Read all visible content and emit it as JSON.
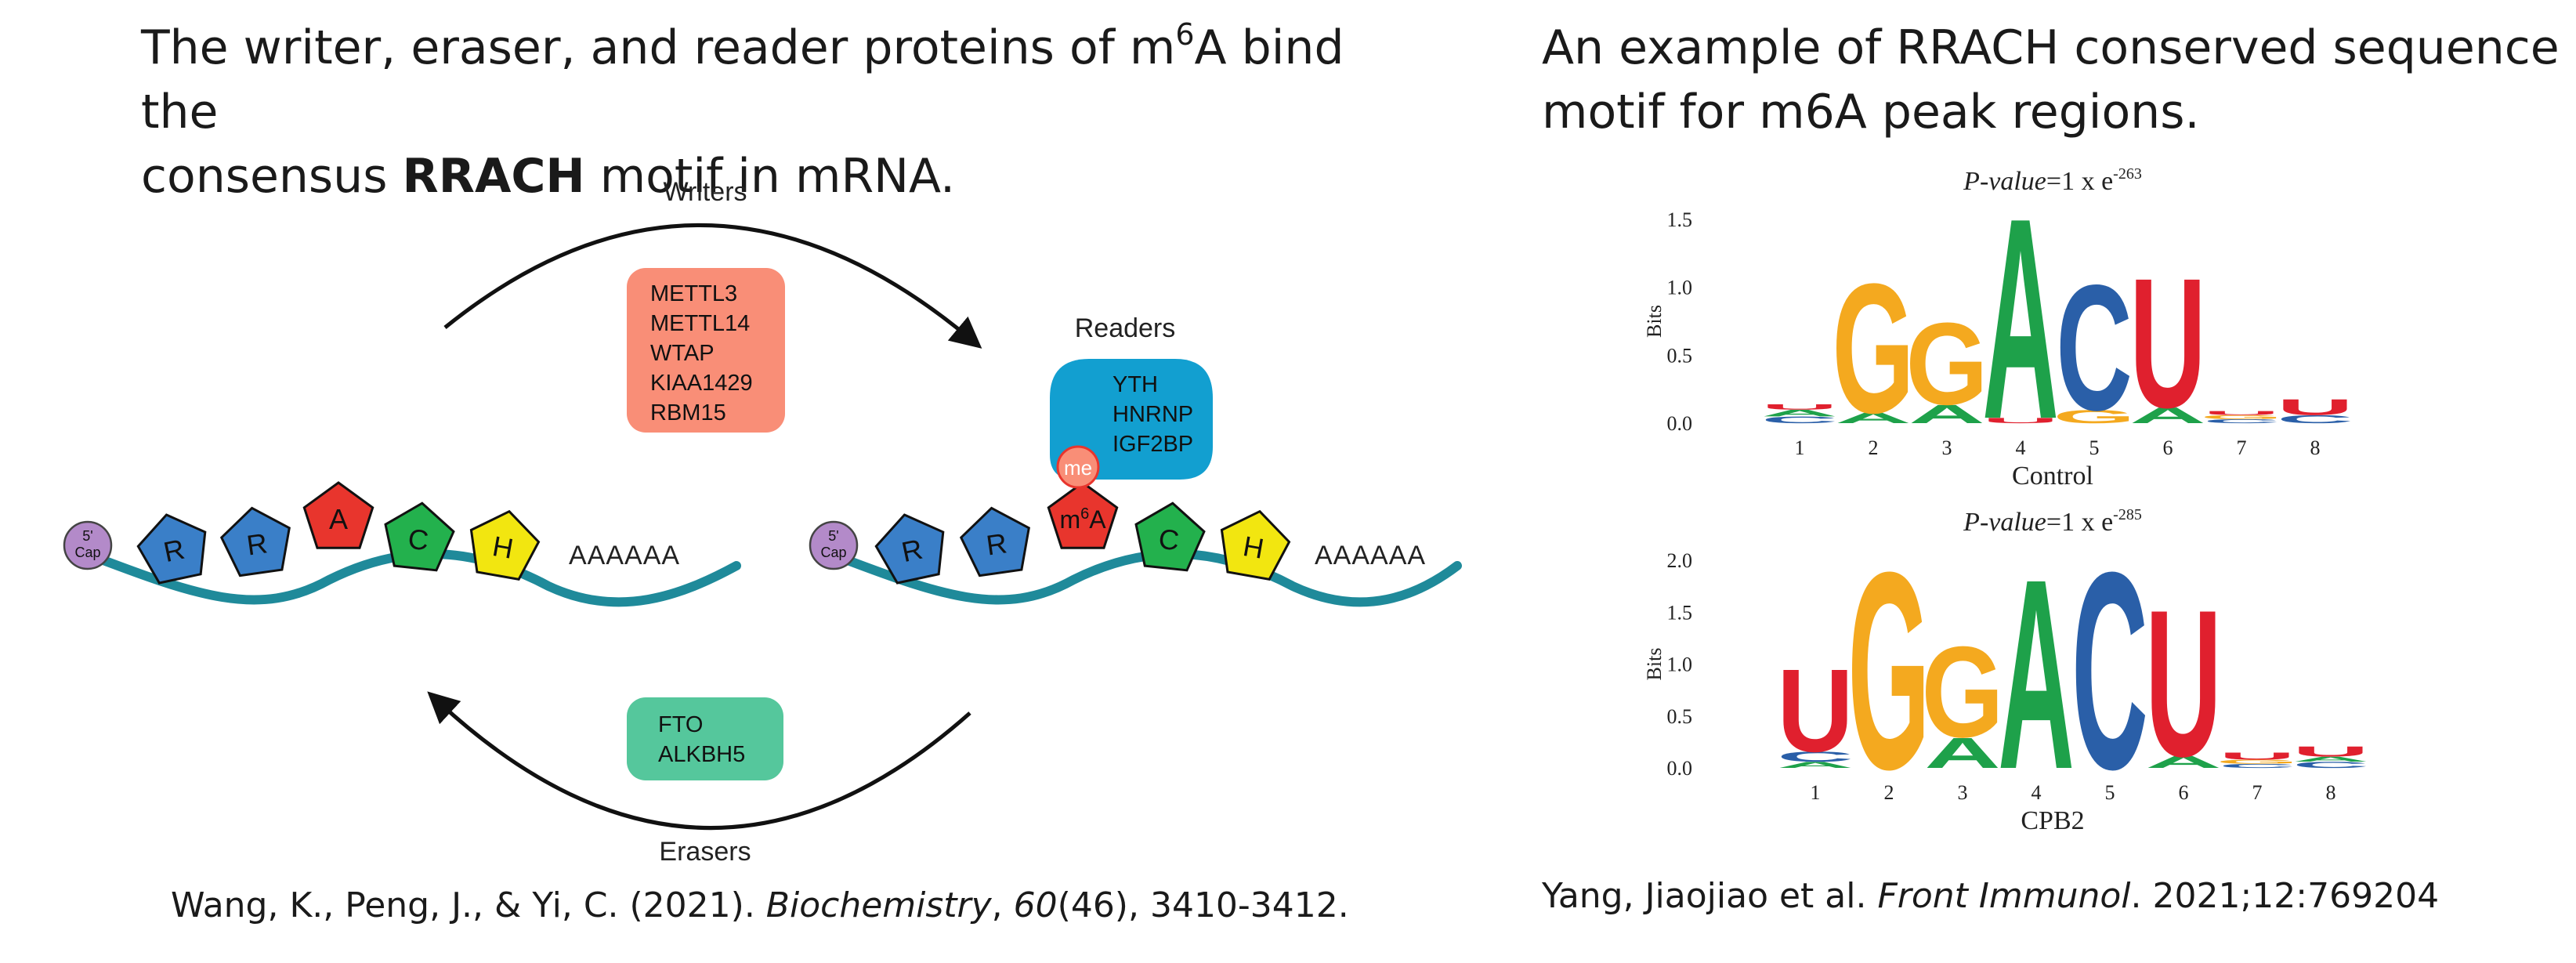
{
  "left_panel": {
    "heading_part1": "The writer, eraser, and reader proteins of m",
    "heading_sup": "6",
    "heading_part2": "A bind the",
    "heading_line2_pre": "consensus ",
    "heading_bold": "RRACH",
    "heading_line2_post": " motif in mRNA.",
    "writers_label": "Writers",
    "writers": [
      "METTL3",
      "METTL14",
      "WTAP",
      "KIAA1429",
      "RBM15"
    ],
    "readers_label": "Readers",
    "readers": [
      "YTH",
      "HNRNP",
      "IGF2BP"
    ],
    "erasers_label": "Erasers",
    "erasers": [
      "FTO",
      "ALKBH5"
    ],
    "cap_top": "5'",
    "cap_bottom": "Cap",
    "motif_letters": [
      "R",
      "R",
      "A",
      "C",
      "H"
    ],
    "polyA": "AAAAAA",
    "me_label": "me",
    "m6a_pre": "m",
    "m6a_sup": "6",
    "m6a_post": "A",
    "citation_pre": "Wang, K., Peng, J., & Yi, C. (2021). ",
    "citation_journal": "Biochemistry",
    "citation_sep": ", ",
    "citation_volume": "60",
    "citation_post": "(46), 3410-3412."
  },
  "right_panel": {
    "heading_line1": "An example of RRACH conserved sequence",
    "heading_line2": "motif for m6A peak regions.",
    "citation_pre": "Yang, Jiaojiao et al. ",
    "citation_journal": "Front Immunol",
    "citation_post": ". 2021;12:769204"
  },
  "colors": {
    "R": "#3a7fc8",
    "A_red": "#e8352d",
    "C": "#23b14d",
    "H": "#f2e610",
    "writers_box": "#f98e77",
    "readers_box": "#129fd0",
    "erasers_box": "#55c79c",
    "mrna": "#1f8a9a",
    "cap": "#b38ac9",
    "logo_G": "#f4a91f",
    "logo_A": "#1ea14a",
    "logo_C": "#2a5fa8",
    "logo_U": "#e0202e"
  },
  "chart_data": [
    {
      "type": "sequence-logo",
      "title_italic": "P-value",
      "title_rest": "=1 x e",
      "title_exp": "-263",
      "xlabel": "Control",
      "ylabel": "Bits",
      "ylim": [
        0,
        1.5
      ],
      "yticks": [
        "0.0",
        "0.5",
        "1.0",
        "1.5"
      ],
      "positions": [
        "1",
        "2",
        "3",
        "4",
        "5",
        "6",
        "7",
        "8"
      ],
      "stacks": [
        [
          {
            "letter": "C",
            "bits": 0.05
          },
          {
            "letter": "A",
            "bits": 0.05
          },
          {
            "letter": "U",
            "bits": 0.04
          }
        ],
        [
          {
            "letter": "A",
            "bits": 0.08
          },
          {
            "letter": "G",
            "bits": 0.98
          }
        ],
        [
          {
            "letter": "A",
            "bits": 0.14
          },
          {
            "letter": "G",
            "bits": 0.62
          }
        ],
        [
          {
            "letter": "U",
            "bits": 0.04
          },
          {
            "letter": "A",
            "bits": 1.52
          }
        ],
        [
          {
            "letter": "G",
            "bits": 0.1
          },
          {
            "letter": "C",
            "bits": 0.95
          }
        ],
        [
          {
            "letter": "A",
            "bits": 0.12
          },
          {
            "letter": "U",
            "bits": 0.98
          }
        ],
        [
          {
            "letter": "C",
            "bits": 0.03
          },
          {
            "letter": "G",
            "bits": 0.03
          },
          {
            "letter": "U",
            "bits": 0.03
          }
        ],
        [
          {
            "letter": "C",
            "bits": 0.06
          },
          {
            "letter": "U",
            "bits": 0.12
          }
        ]
      ]
    },
    {
      "type": "sequence-logo",
      "title_italic": "P-value",
      "title_rest": "=1 x e",
      "title_exp": "-285",
      "xlabel": "CPB2",
      "ylabel": "Bits",
      "ylim": [
        0,
        2.0
      ],
      "yticks": [
        "0.0",
        "0.5",
        "1.0",
        "1.5",
        "2.0"
      ],
      "positions": [
        "1",
        "2",
        "3",
        "4",
        "5",
        "6",
        "7",
        "8"
      ],
      "stacks": [
        [
          {
            "letter": "A",
            "bits": 0.06
          },
          {
            "letter": "C",
            "bits": 0.1
          },
          {
            "letter": "U",
            "bits": 0.82
          }
        ],
        [
          {
            "letter": "G",
            "bits": 1.95
          }
        ],
        [
          {
            "letter": "A",
            "bits": 0.3
          },
          {
            "letter": "G",
            "bits": 0.9
          }
        ],
        [
          {
            "letter": "A",
            "bits": 1.88
          }
        ],
        [
          {
            "letter": "C",
            "bits": 1.95
          }
        ],
        [
          {
            "letter": "A",
            "bits": 0.12
          },
          {
            "letter": "U",
            "bits": 1.45
          }
        ],
        [
          {
            "letter": "C",
            "bits": 0.04
          },
          {
            "letter": "G",
            "bits": 0.04
          },
          {
            "letter": "U",
            "bits": 0.07
          }
        ],
        [
          {
            "letter": "C",
            "bits": 0.06
          },
          {
            "letter": "A",
            "bits": 0.05
          },
          {
            "letter": "U",
            "bits": 0.1
          }
        ]
      ]
    }
  ]
}
